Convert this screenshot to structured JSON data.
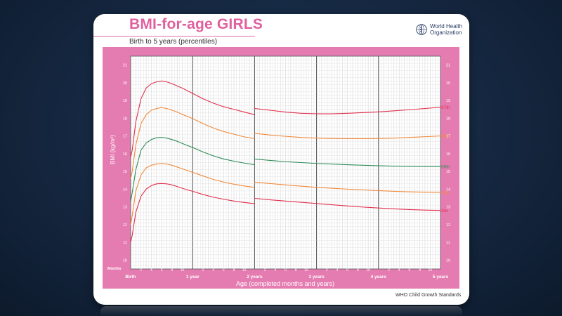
{
  "page": {
    "title": "BMI-for-age GIRLS",
    "subtitle": "Birth to 5 years (percentiles)",
    "org_name_line1": "World Health",
    "org_name_line2": "Organization",
    "footer": "WHO Child Growth Standards",
    "logo_icon": "who-emblem-icon"
  },
  "colors": {
    "panel": "#e57cb1",
    "grid_bg": "#ffffff",
    "grid_minor": "#c9c9c9",
    "grid_major": "#555555",
    "text_on_panel": "#ffffff",
    "p97": "#e0304e",
    "p85": "#f08a3c",
    "p50": "#2e8b57",
    "p15": "#f08a3c",
    "p3": "#e0304e"
  },
  "chart_data": {
    "type": "line",
    "title": "BMI-for-age GIRLS",
    "subtitle": "Birth to 5 years (percentiles)",
    "xlabel": "Age (completed months and years)",
    "ylabel": "BMI (kg/m²)",
    "xlim": [
      0,
      60
    ],
    "ylim": [
      9.5,
      21.5
    ],
    "months_label": "Months",
    "y_ticks": [
      10,
      11,
      12,
      13,
      14,
      15,
      16,
      17,
      18,
      19,
      20,
      21
    ],
    "month_ticks": [
      {
        "x": 2,
        "label": "2"
      },
      {
        "x": 4,
        "label": "4"
      },
      {
        "x": 6,
        "label": "6"
      },
      {
        "x": 8,
        "label": "8"
      },
      {
        "x": 10,
        "label": "10"
      },
      {
        "x": 14,
        "label": "2"
      },
      {
        "x": 16,
        "label": "4"
      },
      {
        "x": 18,
        "label": "6"
      },
      {
        "x": 20,
        "label": "8"
      },
      {
        "x": 22,
        "label": "10"
      },
      {
        "x": 26,
        "label": "2"
      },
      {
        "x": 28,
        "label": "4"
      },
      {
        "x": 30,
        "label": "6"
      },
      {
        "x": 32,
        "label": "8"
      },
      {
        "x": 34,
        "label": "10"
      },
      {
        "x": 38,
        "label": "2"
      },
      {
        "x": 40,
        "label": "4"
      },
      {
        "x": 42,
        "label": "6"
      },
      {
        "x": 44,
        "label": "8"
      },
      {
        "x": 46,
        "label": "10"
      },
      {
        "x": 50,
        "label": "2"
      },
      {
        "x": 52,
        "label": "4"
      },
      {
        "x": 54,
        "label": "6"
      },
      {
        "x": 56,
        "label": "8"
      },
      {
        "x": 58,
        "label": "10"
      }
    ],
    "year_ticks": [
      {
        "x": 0,
        "label": "Birth"
      },
      {
        "x": 12,
        "label": "1 year"
      },
      {
        "x": 24,
        "label": "2 years"
      },
      {
        "x": 36,
        "label": "3 years"
      },
      {
        "x": 48,
        "label": "4 years"
      },
      {
        "x": 60,
        "label": "5 years"
      }
    ],
    "series": [
      {
        "name": "97th",
        "label": "97th",
        "color": "#e0304e",
        "segments": [
          {
            "x": [
              0,
              0.3,
              1,
              2,
              3,
              4,
              5,
              6,
              7,
              8,
              9,
              10,
              11,
              12,
              14,
              16,
              18,
              20,
              22,
              24
            ],
            "y": [
              15.8,
              16.2,
              17.8,
              19.1,
              19.7,
              19.95,
              20.05,
              20.1,
              20.05,
              19.95,
              19.82,
              19.7,
              19.55,
              19.4,
              19.1,
              18.85,
              18.65,
              18.5,
              18.35,
              18.2
            ]
          },
          {
            "x": [
              24,
              27,
              30,
              33,
              36,
              39,
              42,
              45,
              48,
              51,
              54,
              57,
              60
            ],
            "y": [
              18.55,
              18.45,
              18.35,
              18.28,
              18.25,
              18.25,
              18.28,
              18.32,
              18.36,
              18.42,
              18.48,
              18.55,
              18.62
            ]
          }
        ]
      },
      {
        "name": "85th",
        "label": "85th",
        "color": "#f08a3c",
        "segments": [
          {
            "x": [
              0,
              0.3,
              1,
              2,
              3,
              4,
              5,
              6,
              7,
              8,
              9,
              10,
              11,
              12,
              14,
              16,
              18,
              20,
              22,
              24
            ],
            "y": [
              14.6,
              15.0,
              16.5,
              17.7,
              18.2,
              18.45,
              18.55,
              18.6,
              18.55,
              18.45,
              18.35,
              18.22,
              18.1,
              17.98,
              17.7,
              17.45,
              17.25,
              17.1,
              16.95,
              16.85
            ]
          },
          {
            "x": [
              24,
              27,
              30,
              33,
              36,
              39,
              42,
              45,
              48,
              51,
              54,
              57,
              60
            ],
            "y": [
              17.15,
              17.05,
              16.98,
              16.92,
              16.88,
              16.86,
              16.85,
              16.85,
              16.86,
              16.88,
              16.92,
              16.96,
              17.0
            ]
          }
        ]
      },
      {
        "name": "50th",
        "label": "50th",
        "color": "#2e8b57",
        "segments": [
          {
            "x": [
              0,
              0.3,
              1,
              2,
              3,
              4,
              5,
              6,
              7,
              8,
              9,
              10,
              11,
              12,
              14,
              16,
              18,
              20,
              22,
              24
            ],
            "y": [
              13.3,
              13.8,
              15.1,
              16.2,
              16.6,
              16.8,
              16.9,
              16.92,
              16.88,
              16.8,
              16.7,
              16.58,
              16.46,
              16.35,
              16.1,
              15.88,
              15.7,
              15.58,
              15.47,
              15.38
            ]
          },
          {
            "x": [
              24,
              27,
              30,
              33,
              36,
              39,
              42,
              45,
              48,
              51,
              54,
              57,
              60
            ],
            "y": [
              15.7,
              15.62,
              15.55,
              15.5,
              15.45,
              15.42,
              15.38,
              15.35,
              15.32,
              15.3,
              15.29,
              15.28,
              15.28
            ]
          }
        ]
      },
      {
        "name": "15th",
        "label": "15th",
        "color": "#f08a3c",
        "segments": [
          {
            "x": [
              0,
              0.3,
              1,
              2,
              3,
              4,
              5,
              6,
              7,
              8,
              9,
              10,
              11,
              12,
              14,
              16,
              18,
              20,
              22,
              24
            ],
            "y": [
              12.0,
              12.5,
              13.9,
              14.8,
              15.2,
              15.35,
              15.42,
              15.45,
              15.42,
              15.35,
              15.25,
              15.15,
              15.05,
              14.95,
              14.75,
              14.55,
              14.4,
              14.28,
              14.18,
              14.1
            ]
          },
          {
            "x": [
              24,
              27,
              30,
              33,
              36,
              39,
              42,
              45,
              48,
              51,
              54,
              57,
              60
            ],
            "y": [
              14.4,
              14.32,
              14.24,
              14.17,
              14.1,
              14.05,
              14.0,
              13.96,
              13.92,
              13.88,
              13.85,
              13.83,
              13.82
            ]
          }
        ]
      },
      {
        "name": "3rd",
        "label": "3rd",
        "color": "#e0304e",
        "segments": [
          {
            "x": [
              0,
              0.3,
              1,
              2,
              3,
              4,
              5,
              6,
              7,
              8,
              9,
              10,
              11,
              12,
              14,
              16,
              18,
              20,
              22,
              24
            ],
            "y": [
              11.0,
              11.4,
              12.7,
              13.6,
              14.0,
              14.2,
              14.3,
              14.32,
              14.3,
              14.24,
              14.15,
              14.05,
              13.96,
              13.88,
              13.7,
              13.55,
              13.43,
              13.33,
              13.25,
              13.18
            ]
          },
          {
            "x": [
              24,
              27,
              30,
              33,
              36,
              39,
              42,
              45,
              48,
              51,
              54,
              57,
              60
            ],
            "y": [
              13.48,
              13.4,
              13.33,
              13.26,
              13.19,
              13.12,
              13.05,
              12.99,
              12.94,
              12.89,
              12.85,
              12.82,
              12.8
            ]
          }
        ]
      }
    ]
  }
}
